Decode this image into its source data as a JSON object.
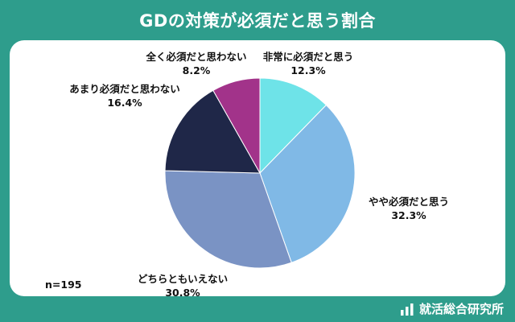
{
  "title": "GDの対策が必須だと思う割合",
  "note": "n=195",
  "brand": {
    "name": "就活総合研究所",
    "icon": "bar-chart-icon"
  },
  "chart_data": {
    "type": "pie",
    "n": 195,
    "slices": [
      {
        "label": "非常に必須だと思う",
        "value": 12.3,
        "value_label": "12.3%",
        "color": "#6ee3e8"
      },
      {
        "label": "やや必須だと思う",
        "value": 32.3,
        "value_label": "32.3%",
        "color": "#80b9e6"
      },
      {
        "label": "どちらともいえない",
        "value": 30.8,
        "value_label": "30.8%",
        "color": "#7a93c4"
      },
      {
        "label": "あまり必須だと思わない",
        "value": 16.4,
        "value_label": "16.4%",
        "color": "#1f2748"
      },
      {
        "label": "全く必須だと思わない",
        "value": 8.2,
        "value_label": "8.2%",
        "color": "#a2338a"
      }
    ]
  }
}
